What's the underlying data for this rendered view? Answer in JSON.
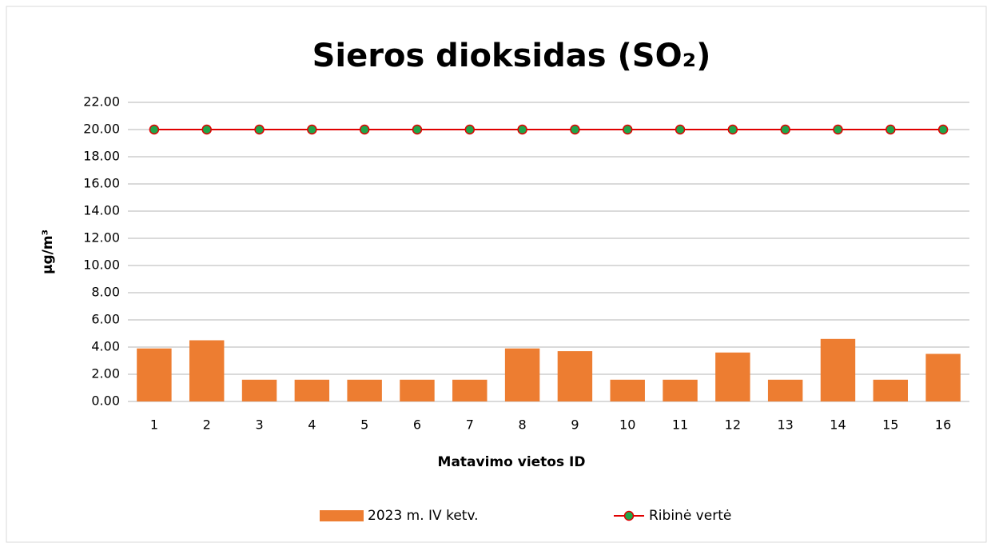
{
  "chart_data": {
    "type": "bar",
    "title": "Sieros dioksidas (SO₂)",
    "x_label": "Matavimo vietos ID",
    "y_label": "µg/m³",
    "categories": [
      "1",
      "2",
      "3",
      "4",
      "5",
      "6",
      "7",
      "8",
      "9",
      "10",
      "11",
      "12",
      "13",
      "14",
      "15",
      "16"
    ],
    "series": [
      {
        "name": "2023 m. IV ketv.",
        "type": "bar",
        "color": "#ed7d31",
        "values": [
          3.9,
          4.5,
          1.6,
          1.6,
          1.6,
          1.6,
          1.6,
          3.9,
          3.7,
          1.6,
          1.6,
          3.6,
          1.6,
          4.6,
          1.6,
          3.5
        ]
      },
      {
        "name": "Ribinė vertė",
        "type": "line",
        "color": "#e00000",
        "marker_color": "#1fa64a",
        "values": [
          20,
          20,
          20,
          20,
          20,
          20,
          20,
          20,
          20,
          20,
          20,
          20,
          20,
          20,
          20,
          20
        ]
      }
    ],
    "ylim": [
      0,
      22
    ],
    "yticks": [
      {
        "value": 0,
        "label": "0.00"
      },
      {
        "value": 2,
        "label": "2.00"
      },
      {
        "value": 4,
        "label": "4.00"
      },
      {
        "value": 6,
        "label": "6.00"
      },
      {
        "value": 8,
        "label": "8.00"
      },
      {
        "value": 10,
        "label": "10.00"
      },
      {
        "value": 12,
        "label": "12.00"
      },
      {
        "value": 14,
        "label": "14.00"
      },
      {
        "value": 16,
        "label": "16.00"
      },
      {
        "value": 18,
        "label": "18.00"
      },
      {
        "value": 20,
        "label": "20.00"
      },
      {
        "value": 22,
        "label": "22.00"
      }
    ],
    "grid": true,
    "legend": "bottom"
  }
}
